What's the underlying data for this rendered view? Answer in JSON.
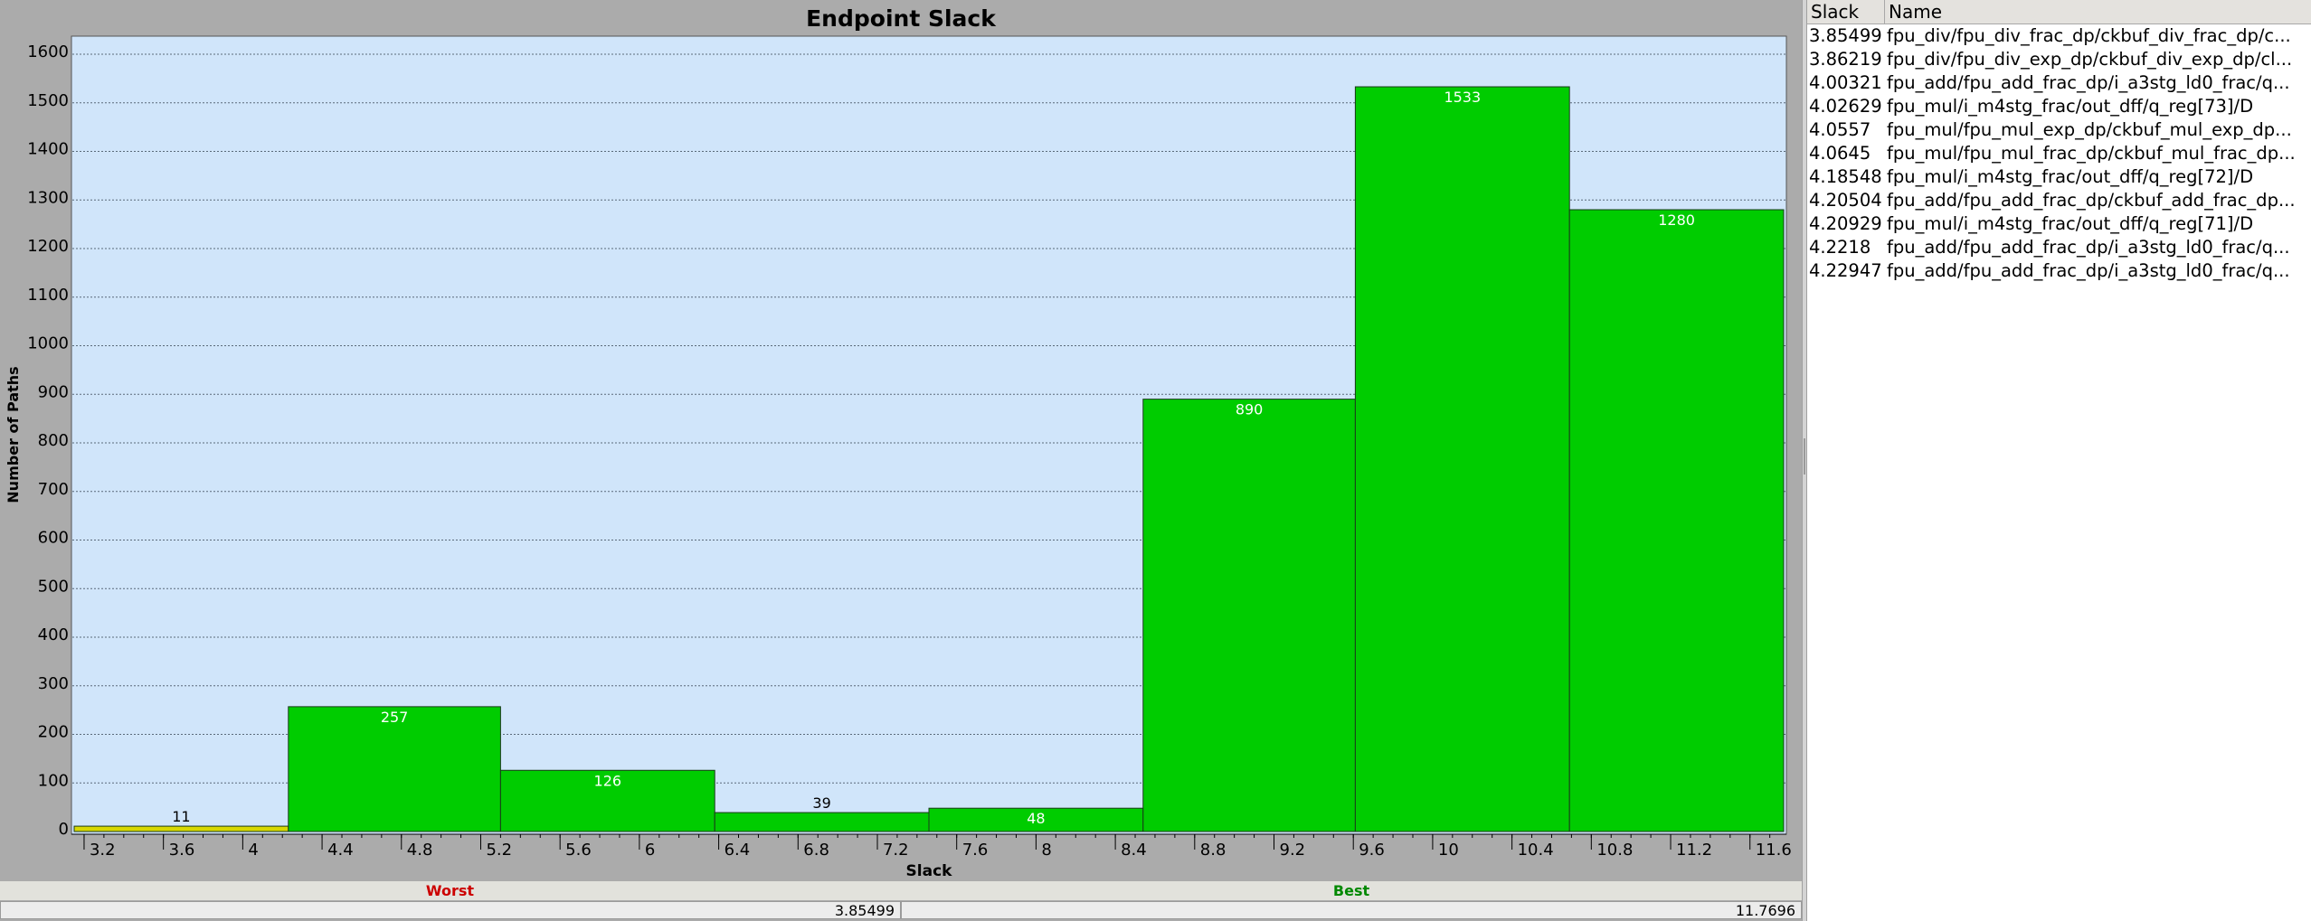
{
  "chart_data": {
    "type": "bar",
    "title": "Endpoint Slack",
    "xlabel": "Slack",
    "ylabel": "Number of Paths",
    "x_ticks": [
      3.2,
      3.6,
      4,
      4.4,
      4.8,
      5.2,
      5.6,
      6,
      6.4,
      6.8,
      7.2,
      7.6,
      8,
      8.4,
      8.8,
      9.2,
      9.6,
      10,
      10.4,
      10.8,
      11.2,
      11.6
    ],
    "y_ticks": [
      0,
      100,
      200,
      300,
      400,
      500,
      600,
      700,
      800,
      900,
      1000,
      1100,
      1200,
      1300,
      1400,
      1500,
      1600
    ],
    "xlim": [
      3.15,
      11.77
    ],
    "ylim": [
      0,
      1645
    ],
    "grid": "horizontal dotted",
    "bins": [
      {
        "x0": 3.15,
        "x1": 4.23,
        "value": 11,
        "color": "#d8d800",
        "label_color": "#000000"
      },
      {
        "x0": 4.23,
        "x1": 5.3,
        "value": 257,
        "color": "#00cc00",
        "label_color": "#ffffff"
      },
      {
        "x0": 5.3,
        "x1": 6.38,
        "value": 126,
        "color": "#00cc00",
        "label_color": "#ffffff"
      },
      {
        "x0": 6.38,
        "x1": 7.46,
        "value": 39,
        "color": "#00cc00",
        "label_color": "#000000"
      },
      {
        "x0": 7.46,
        "x1": 8.54,
        "value": 48,
        "color": "#00cc00",
        "label_color": "#ffffff"
      },
      {
        "x0": 8.54,
        "x1": 9.61,
        "value": 890,
        "color": "#00cc00",
        "label_color": "#ffffff"
      },
      {
        "x0": 9.61,
        "x1": 10.69,
        "value": 1533,
        "color": "#00cc00",
        "label_color": "#ffffff"
      },
      {
        "x0": 10.69,
        "x1": 11.77,
        "value": 1280,
        "color": "#00cc00",
        "label_color": "#ffffff"
      }
    ],
    "colors": {
      "plot_bg": "#d0e5fa",
      "frame_bg": "#ababab",
      "worst": "#cc0000",
      "best": "#008800"
    }
  },
  "footer": {
    "worst_label": "Worst",
    "worst_value": "3.85499",
    "best_label": "Best",
    "best_value": "11.7696"
  },
  "table": {
    "columns": [
      "Slack",
      "Name"
    ],
    "rows": [
      {
        "slack": "3.85499",
        "name": "fpu_div/fpu_div_frac_dp/ckbuf_div_frac_dp/c..."
      },
      {
        "slack": "3.86219",
        "name": "fpu_div/fpu_div_exp_dp/ckbuf_div_exp_dp/cl..."
      },
      {
        "slack": "4.00321",
        "name": "fpu_add/fpu_add_frac_dp/i_a3stg_ld0_frac/q..."
      },
      {
        "slack": "4.02629",
        "name": "fpu_mul/i_m4stg_frac/out_dff/q_reg[73]/D"
      },
      {
        "slack": "4.0557",
        "name": "fpu_mul/fpu_mul_exp_dp/ckbuf_mul_exp_dp..."
      },
      {
        "slack": "4.0645",
        "name": "fpu_mul/fpu_mul_frac_dp/ckbuf_mul_frac_dp..."
      },
      {
        "slack": "4.18548",
        "name": "fpu_mul/i_m4stg_frac/out_dff/q_reg[72]/D"
      },
      {
        "slack": "4.20504",
        "name": "fpu_add/fpu_add_frac_dp/ckbuf_add_frac_dp..."
      },
      {
        "slack": "4.20929",
        "name": "fpu_mul/i_m4stg_frac/out_dff/q_reg[71]/D"
      },
      {
        "slack": "4.2218",
        "name": "fpu_add/fpu_add_frac_dp/i_a3stg_ld0_frac/q..."
      },
      {
        "slack": "4.22947",
        "name": "fpu_add/fpu_add_frac_dp/i_a3stg_ld0_frac/q..."
      }
    ]
  }
}
